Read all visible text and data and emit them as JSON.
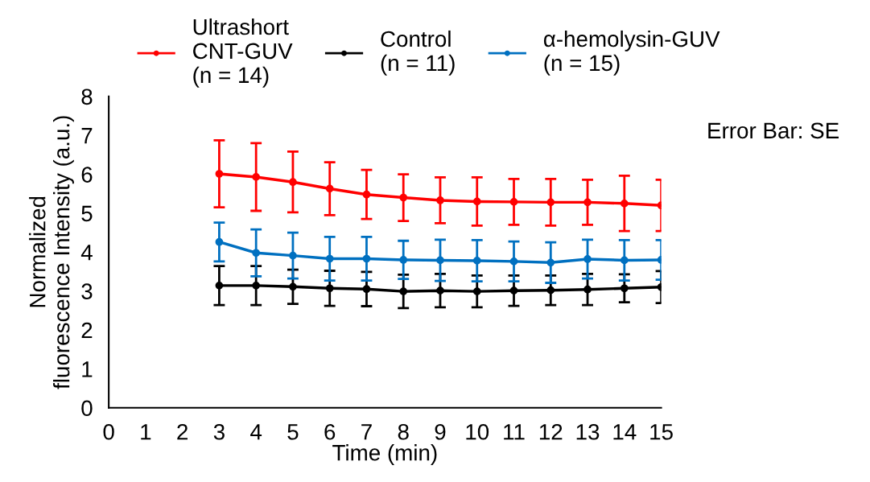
{
  "chart_data": {
    "type": "line",
    "xlabel": "Time (min)",
    "ylabel": "Normalized\nfluorescence Intensity (a.u.)",
    "x": [
      3,
      4,
      5,
      6,
      7,
      8,
      9,
      10,
      11,
      12,
      13,
      14,
      15
    ],
    "series": [
      {
        "name": "Ultrashort\nCNT-GUV\n(n = 14)",
        "color": "#ff0000",
        "values": [
          6.01,
          5.93,
          5.8,
          5.63,
          5.48,
          5.4,
          5.33,
          5.3,
          5.29,
          5.28,
          5.28,
          5.25,
          5.2
        ],
        "errors": [
          0.86,
          0.87,
          0.78,
          0.68,
          0.63,
          0.6,
          0.59,
          0.62,
          0.59,
          0.6,
          0.58,
          0.71,
          0.66
        ]
      },
      {
        "name": "Control\n(n = 11)",
        "color": "#000000",
        "values": [
          3.14,
          3.14,
          3.11,
          3.07,
          3.05,
          2.99,
          3.01,
          2.99,
          3.01,
          3.02,
          3.04,
          3.07,
          3.1
        ],
        "errors": [
          0.5,
          0.5,
          0.44,
          0.45,
          0.44,
          0.43,
          0.43,
          0.41,
          0.39,
          0.38,
          0.4,
          0.36,
          0.41
        ]
      },
      {
        "name": "α-hemolysin-GUV\n(n = 15)",
        "color": "#0070c0",
        "values": [
          4.26,
          3.98,
          3.91,
          3.83,
          3.83,
          3.8,
          3.79,
          3.78,
          3.76,
          3.73,
          3.82,
          3.79,
          3.8
        ],
        "errors": [
          0.5,
          0.6,
          0.59,
          0.56,
          0.56,
          0.49,
          0.53,
          0.53,
          0.51,
          0.52,
          0.5,
          0.52,
          0.51
        ]
      }
    ],
    "xlim": [
      0,
      15
    ],
    "xticks": [
      0,
      1,
      2,
      3,
      4,
      5,
      6,
      7,
      8,
      9,
      10,
      11,
      12,
      13,
      14,
      15
    ],
    "ylim": [
      0,
      8
    ],
    "yticks": [
      0,
      1,
      2,
      3,
      4,
      5,
      6,
      7,
      8
    ],
    "annotations": [
      "Error Bar: SE"
    ],
    "legend": "top",
    "marker": "circle",
    "line_style": "solid",
    "grid": false
  }
}
